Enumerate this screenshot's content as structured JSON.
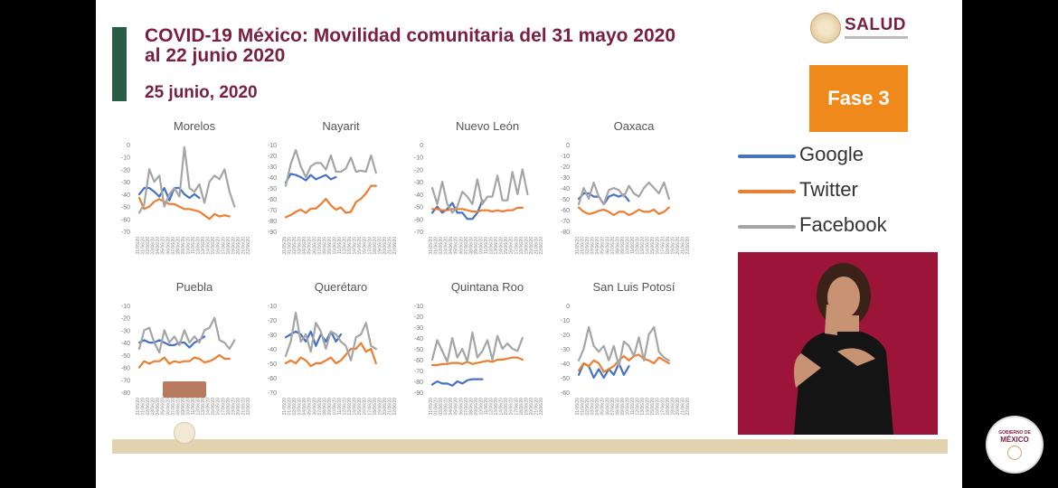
{
  "header": {
    "title_line1": "COVID-19 México: Movilidad comunitaria del 31 mayo 2020",
    "title_line2": "al 22 junio 2020",
    "date": "25 junio, 2020",
    "brand": "SALUD",
    "phase": "Fase 3"
  },
  "footer_logo": {
    "line1": "GOBIERNO DE",
    "line2": "MÉXICO"
  },
  "colors": {
    "Google": "#4472c4",
    "Twitter": "#ed7d31",
    "Facebook": "#a5a5a5",
    "title": "#7a1f3d",
    "phase": "#f0891b",
    "interpreter_bg": "#9c1437"
  },
  "legend": [
    {
      "name": "Google",
      "color": "#4472c4"
    },
    {
      "name": "Twitter",
      "color": "#ed7d31"
    },
    {
      "name": "Facebook",
      "color": "#a5a5a5"
    }
  ],
  "x_dates": [
    "31/05/20",
    "01/06/20",
    "02/06/20",
    "03/06/20",
    "04/06/20",
    "05/06/20",
    "06/06/20",
    "07/06/20",
    "08/06/20",
    "09/06/20",
    "10/06/20",
    "11/06/20",
    "12/06/20",
    "13/06/20",
    "14/06/20",
    "15/06/20",
    "16/06/20",
    "17/06/20",
    "18/06/20",
    "19/06/20",
    "20/06/20",
    "21/06/20",
    "22/06/20"
  ],
  "chart_data": [
    {
      "type": "line",
      "title": "Morelos",
      "yticks": [
        0,
        -10,
        -20,
        -30,
        -40,
        -50,
        -60,
        -70
      ],
      "ylim": [
        -70,
        0
      ],
      "series": [
        {
          "name": "Google",
          "values": [
            -40,
            -35,
            -35,
            -38,
            -42,
            -35,
            -45,
            -35,
            -35,
            -40,
            -43,
            -40,
            -43
          ]
        },
        {
          "name": "Twitter",
          "values": [
            -43,
            -52,
            -50,
            -46,
            -44,
            -46,
            -48,
            -48,
            -50,
            -52,
            -52,
            -53,
            -54,
            -57,
            -60,
            -56,
            -58,
            -57,
            -58
          ]
        },
        {
          "name": "Facebook",
          "values": [
            -55,
            -48,
            -20,
            -30,
            -25,
            -50,
            -40,
            -35,
            -42,
            -2,
            -35,
            -38,
            -32,
            -47,
            -30,
            -25,
            -28,
            -20,
            -38,
            -50
          ]
        }
      ]
    },
    {
      "type": "line",
      "title": "Nayarit",
      "yticks": [
        -10,
        -20,
        -30,
        -40,
        -50,
        -60,
        -70,
        -80,
        -90
      ],
      "ylim": [
        -90,
        -10
      ],
      "series": [
        {
          "name": "Google",
          "values": [
            -45,
            -37,
            -38,
            -40,
            -43,
            -38,
            -42,
            -40,
            -38,
            -42,
            -40
          ]
        },
        {
          "name": "Twitter",
          "values": [
            -77,
            -75,
            -72,
            -70,
            -73,
            -69,
            -69,
            -65,
            -60,
            -66,
            -70,
            -68,
            -73,
            -72,
            -63,
            -60,
            -55,
            -48,
            -48
          ]
        },
        {
          "name": "Facebook",
          "values": [
            -48,
            -28,
            -15,
            -30,
            -40,
            -30,
            -27,
            -27,
            -33,
            -20,
            -35,
            -35,
            -32,
            -22,
            -35,
            -34,
            -35,
            -20,
            -36
          ]
        }
      ]
    },
    {
      "type": "line",
      "title": "Nuevo León",
      "yticks": [
        0,
        -10,
        -20,
        -30,
        -40,
        -50,
        -60,
        -70
      ],
      "ylim": [
        -70,
        0
      ],
      "series": [
        {
          "name": "Google",
          "values": [
            -55,
            -50,
            -55,
            -52,
            -47,
            -55,
            -55,
            -60,
            -60,
            -55,
            -45
          ]
        },
        {
          "name": "Twitter",
          "values": [
            -52,
            -52,
            -53,
            -53,
            -52,
            -52,
            -52,
            -53,
            -54,
            -54,
            -53,
            -53,
            -54,
            -53,
            -54,
            -53,
            -53,
            -51,
            -51
          ]
        },
        {
          "name": "Facebook",
          "values": [
            -35,
            -48,
            -30,
            -48,
            -55,
            -50,
            -38,
            -42,
            -48,
            -28,
            -48,
            -42,
            -42,
            -25,
            -45,
            -45,
            -22,
            -40,
            -20,
            -40
          ]
        }
      ]
    },
    {
      "type": "line",
      "title": "Oaxaca",
      "yticks": [
        0,
        -10,
        -20,
        -30,
        -40,
        -50,
        -60,
        -70,
        -80
      ],
      "ylim": [
        -80,
        0
      ],
      "series": [
        {
          "name": "Google",
          "values": [
            -50,
            -45,
            -45,
            -48,
            -48,
            -55,
            -48,
            -46,
            -48,
            -46,
            -52
          ]
        },
        {
          "name": "Twitter",
          "values": [
            -58,
            -62,
            -64,
            -63,
            -61,
            -60,
            -62,
            -65,
            -62,
            -62,
            -65,
            -63,
            -60,
            -62,
            -62,
            -60,
            -64,
            -62,
            -58
          ]
        },
        {
          "name": "Facebook",
          "values": [
            -55,
            -40,
            -50,
            -35,
            -48,
            -55,
            -42,
            -40,
            -42,
            -48,
            -38,
            -45,
            -48,
            -40,
            -35,
            -40,
            -45,
            -35,
            -50
          ]
        }
      ]
    },
    {
      "type": "line",
      "title": "Puebla",
      "yticks": [
        -10,
        -20,
        -30,
        -40,
        -50,
        -60,
        -70,
        -80
      ],
      "ylim": [
        -80,
        -10
      ],
      "series": [
        {
          "name": "Google",
          "values": [
            -40,
            -38,
            -40,
            -40,
            -38,
            -40,
            -42,
            -42,
            -40,
            -40,
            -44,
            -40,
            -38,
            -35
          ]
        },
        {
          "name": "Twitter",
          "values": [
            -60,
            -55,
            -57,
            -55,
            -55,
            -52,
            -57,
            -55,
            -56,
            -55,
            -55,
            -52,
            -53,
            -56,
            -55,
            -53,
            -50,
            -53,
            -53
          ]
        },
        {
          "name": "Facebook",
          "values": [
            -45,
            -30,
            -28,
            -40,
            -48,
            -30,
            -40,
            -35,
            -42,
            -30,
            -40,
            -35,
            -40,
            -30,
            -28,
            -20,
            -38,
            -40,
            -45,
            -38
          ]
        }
      ]
    },
    {
      "type": "line",
      "title": "Querétaro",
      "yticks": [
        -10,
        -20,
        -30,
        -40,
        -50,
        -60,
        -70
      ],
      "ylim": [
        -70,
        -10
      ],
      "series": [
        {
          "name": "Google",
          "values": [
            -32,
            -30,
            -28,
            -30,
            -35,
            -28,
            -38,
            -30,
            -35,
            -28,
            -35,
            -30
          ]
        },
        {
          "name": "Twitter",
          "values": [
            -50,
            -48,
            -50,
            -46,
            -48,
            -52,
            -50,
            -50,
            -48,
            -46,
            -50,
            -48,
            -44,
            -40,
            -40,
            -36,
            -42,
            -40,
            -50
          ]
        },
        {
          "name": "Facebook",
          "values": [
            -45,
            -35,
            -15,
            -35,
            -30,
            -42,
            -22,
            -28,
            -40,
            -28,
            -30,
            -35,
            -38,
            -48,
            -32,
            -30,
            -22,
            -38,
            -40
          ]
        }
      ]
    },
    {
      "type": "line",
      "title": "Quintana Roo",
      "yticks": [
        -10,
        -20,
        -30,
        -40,
        -50,
        -60,
        -70,
        -80,
        -90
      ],
      "ylim": [
        -90,
        -10
      ],
      "series": [
        {
          "name": "Google",
          "values": [
            -83,
            -80,
            -82,
            -82,
            -84,
            -80,
            -82,
            -79,
            -78,
            -78,
            -78
          ]
        },
        {
          "name": "Twitter",
          "values": [
            -65,
            -65,
            -64,
            -64,
            -63,
            -63,
            -64,
            -62,
            -64,
            -63,
            -62,
            -61,
            -62,
            -60,
            -60,
            -59,
            -58,
            -58,
            -60
          ]
        },
        {
          "name": "Facebook",
          "values": [
            -60,
            -42,
            -52,
            -62,
            -40,
            -58,
            -50,
            -62,
            -35,
            -58,
            -52,
            -42,
            -60,
            -38,
            -50,
            -45,
            -50,
            -52,
            -40
          ]
        }
      ]
    },
    {
      "type": "line",
      "title": "San Luis Potosí",
      "yticks": [
        0,
        -10,
        -20,
        -30,
        -40,
        -50,
        -60
      ],
      "ylim": [
        -60,
        0
      ],
      "series": [
        {
          "name": "Google",
          "values": [
            -48,
            -40,
            -42,
            -50,
            -44,
            -50,
            -44,
            -48,
            -40,
            -48,
            -42
          ]
        },
        {
          "name": "Twitter",
          "values": [
            -45,
            -40,
            -42,
            -38,
            -40,
            -46,
            -44,
            -42,
            -38,
            -35,
            -38,
            -35,
            -34,
            -37,
            -38,
            -40,
            -36,
            -38,
            -40
          ]
        },
        {
          "name": "Facebook",
          "values": [
            -38,
            -30,
            -15,
            -28,
            -32,
            -28,
            -38,
            -28,
            -42,
            -25,
            -28,
            -35,
            -22,
            -38,
            -20,
            -15,
            -32,
            -36,
            -38
          ]
        }
      ]
    }
  ]
}
